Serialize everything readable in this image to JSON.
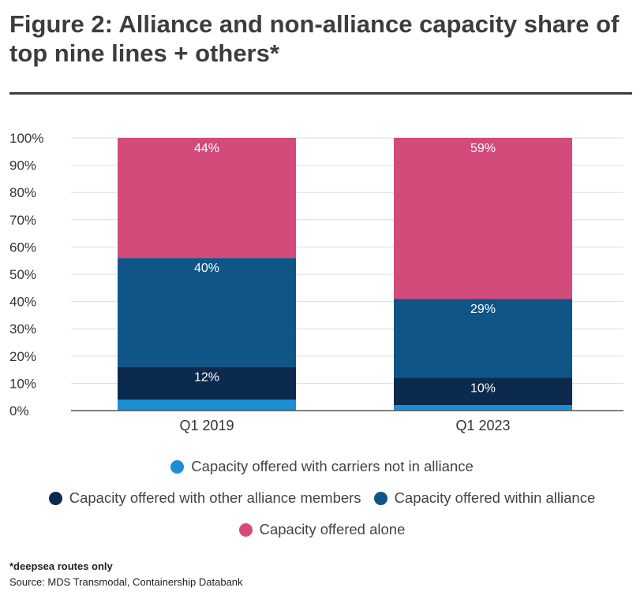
{
  "title": "Figure 2: Alliance and non-alliance capacity share of top nine lines + others*",
  "footnote": "*deepsea routes only",
  "source": "Source: MDS Transmodal, Containership Databank",
  "chart_data": {
    "type": "bar",
    "stacked": true,
    "title": "Figure 2: Alliance and non-alliance capacity share of top nine lines + others*",
    "xlabel": "",
    "ylabel": "",
    "ylim": [
      0,
      100
    ],
    "yticks": [
      "0%",
      "10%",
      "20%",
      "30%",
      "40%",
      "50%",
      "60%",
      "70%",
      "80%",
      "90%",
      "100%"
    ],
    "grid": true,
    "legend_position": "bottom",
    "categories": [
      "Q1 2019",
      "Q1 2023"
    ],
    "series": [
      {
        "name": "Capacity offered with carriers not in alliance",
        "color": "#1a8fd6",
        "values": [
          4,
          2
        ],
        "labels": [
          "",
          ""
        ]
      },
      {
        "name": "Capacity offered with other alliance members",
        "color": "#0b2a4e",
        "values": [
          12,
          10
        ],
        "labels": [
          "12%",
          "10%"
        ]
      },
      {
        "name": "Capacity offered within alliance",
        "color": "#0f5587",
        "values": [
          40,
          29
        ],
        "labels": [
          "40%",
          "29%"
        ]
      },
      {
        "name": "Capacity offered alone",
        "color": "#d24b7a",
        "values": [
          44,
          59
        ],
        "labels": [
          "44%",
          "59%"
        ]
      }
    ]
  }
}
